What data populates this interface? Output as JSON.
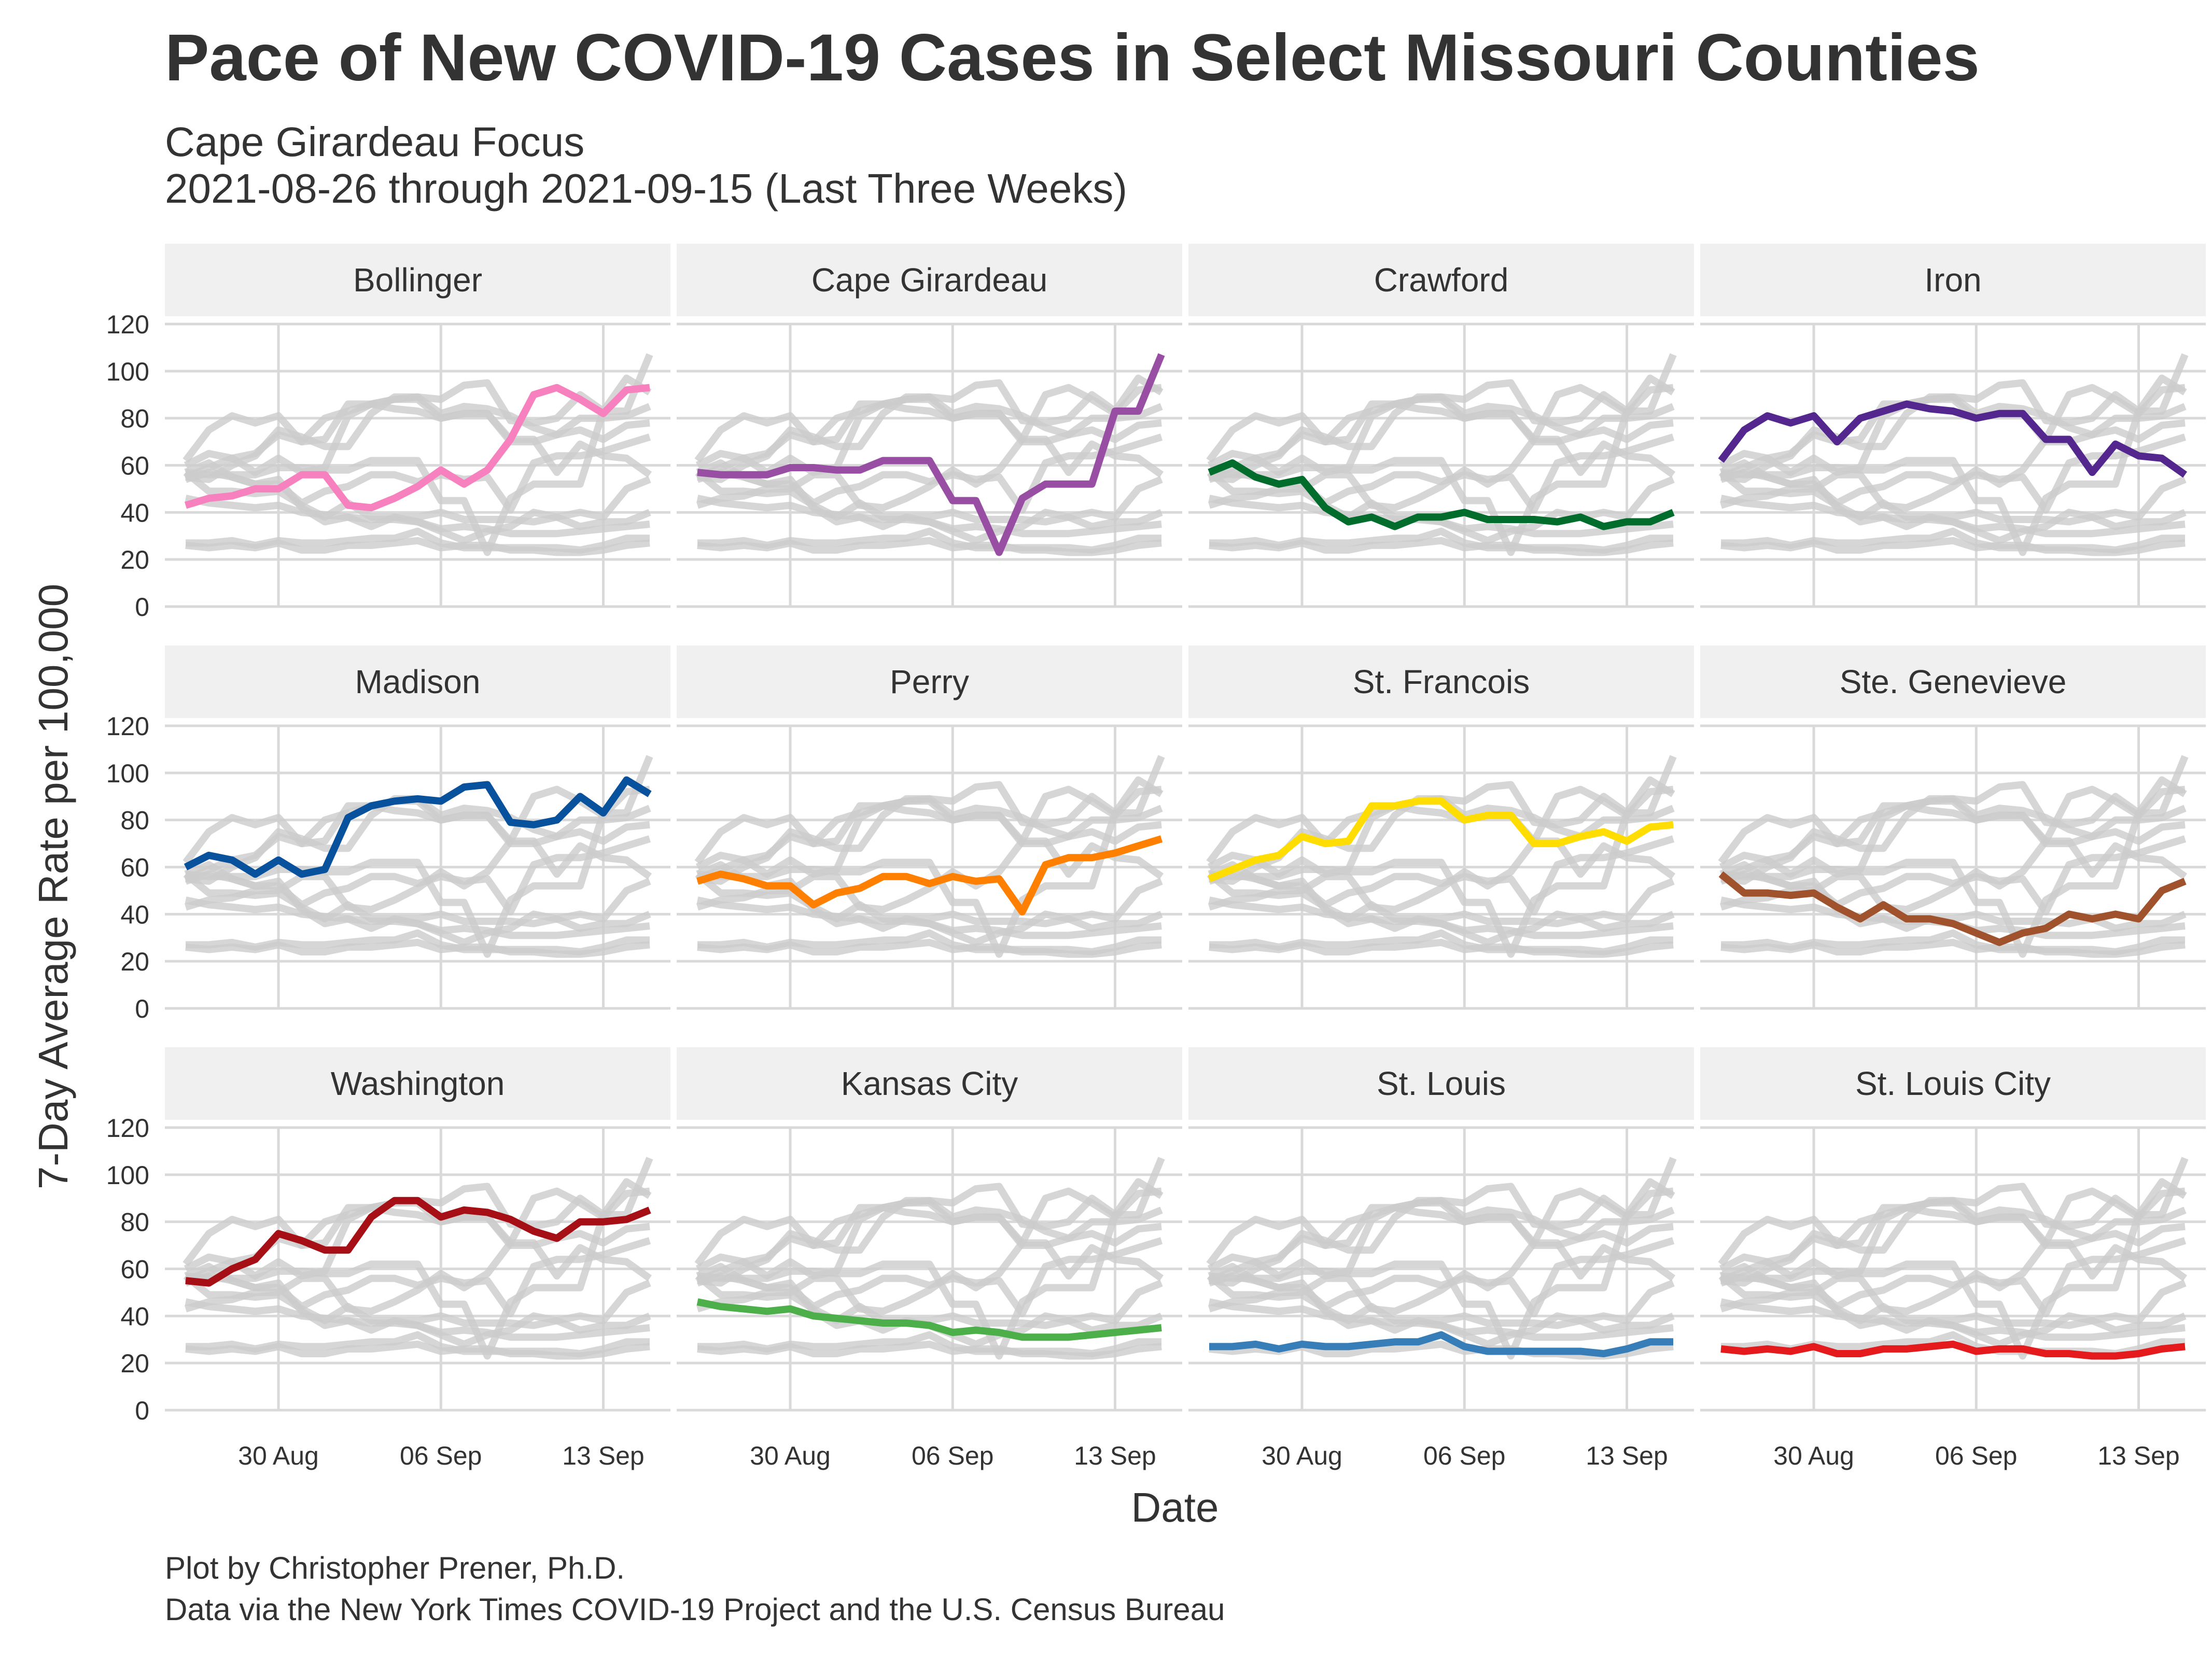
{
  "title": "Pace of New COVID-19 Cases in Select Missouri Counties",
  "subtitle_line1": "Cape Girardeau Focus",
  "subtitle_line2": "2021-08-26 through 2021-09-15 (Last Three Weeks)",
  "caption_line1": "Plot by Christopher Prener, Ph.D.",
  "caption_line2": "Data via the New York Times COVID-19 Project and the U.S. Census Bureau",
  "chart_data": {
    "type": "line",
    "layout": "small-multiples",
    "xlabel": "Date",
    "ylabel": "7-Day Average Rate per 100,000",
    "ylim": [
      0,
      120
    ],
    "yticks": [
      0,
      20,
      40,
      60,
      80,
      100,
      120
    ],
    "xticks": [
      {
        "label": "30 Aug",
        "index": 4
      },
      {
        "label": "06 Sep",
        "index": 11
      },
      {
        "label": "13 Sep",
        "index": 18
      }
    ],
    "x": [
      "2021-08-26",
      "2021-08-27",
      "2021-08-28",
      "2021-08-29",
      "2021-08-30",
      "2021-08-31",
      "2021-09-01",
      "2021-09-02",
      "2021-09-03",
      "2021-09-04",
      "2021-09-05",
      "2021-09-06",
      "2021-09-07",
      "2021-09-08",
      "2021-09-09",
      "2021-09-10",
      "2021-09-11",
      "2021-09-12",
      "2021-09-13",
      "2021-09-14",
      "2021-09-15"
    ],
    "grid": true,
    "background_series_color": "#cccccc",
    "series": [
      {
        "name": "Bollinger",
        "color": "#f781bf",
        "values": [
          43,
          46,
          47,
          50,
          50,
          56,
          56,
          43,
          42,
          46,
          51,
          58,
          52,
          58,
          71,
          90,
          93,
          88,
          82,
          92,
          93
        ]
      },
      {
        "name": "Cape Girardeau",
        "color": "#984ea3",
        "values": [
          57,
          56,
          56,
          56,
          59,
          59,
          58,
          58,
          62,
          62,
          62,
          45,
          45,
          23,
          46,
          52,
          52,
          52,
          83,
          83,
          107
        ]
      },
      {
        "name": "Crawford",
        "color": "#006d2c",
        "values": [
          57,
          61,
          55,
          52,
          54,
          42,
          36,
          38,
          34,
          38,
          38,
          40,
          37,
          37,
          37,
          36,
          38,
          34,
          36,
          36,
          40
        ]
      },
      {
        "name": "Iron",
        "color": "#54278f",
        "values": [
          62,
          75,
          81,
          78,
          81,
          70,
          80,
          83,
          86,
          84,
          83,
          80,
          82,
          82,
          71,
          71,
          57,
          69,
          64,
          63,
          56
        ]
      },
      {
        "name": "Madison",
        "color": "#08519c",
        "values": [
          60,
          65,
          63,
          57,
          63,
          57,
          59,
          81,
          86,
          88,
          89,
          88,
          94,
          95,
          79,
          78,
          80,
          90,
          83,
          97,
          91
        ]
      },
      {
        "name": "Perry",
        "color": "#ff7f00",
        "values": [
          54,
          57,
          55,
          52,
          52,
          44,
          49,
          51,
          56,
          56,
          53,
          56,
          54,
          55,
          41,
          61,
          64,
          64,
          66,
          69,
          72
        ]
      },
      {
        "name": "St. Francois",
        "color": "#ffdd00",
        "values": [
          55,
          59,
          63,
          65,
          73,
          70,
          71,
          86,
          86,
          88,
          88,
          80,
          82,
          82,
          70,
          70,
          73,
          75,
          71,
          77,
          78
        ]
      },
      {
        "name": "Ste. Genevieve",
        "color": "#a0522d",
        "values": [
          57,
          49,
          49,
          48,
          49,
          43,
          38,
          44,
          38,
          38,
          36,
          32,
          28,
          32,
          34,
          40,
          38,
          40,
          38,
          50,
          54
        ]
      },
      {
        "name": "Washington",
        "color": "#a50f15",
        "values": [
          55,
          54,
          60,
          64,
          75,
          72,
          68,
          68,
          82,
          89,
          89,
          82,
          85,
          84,
          81,
          76,
          73,
          80,
          80,
          81,
          85
        ]
      },
      {
        "name": "Kansas City",
        "color": "#4daf4a",
        "values": [
          46,
          44,
          43,
          42,
          43,
          40,
          39,
          38,
          37,
          37,
          36,
          33,
          34,
          33,
          31,
          31,
          31,
          32,
          33,
          34,
          35
        ]
      },
      {
        "name": "St. Louis",
        "color": "#377eb8",
        "values": [
          27,
          27,
          28,
          26,
          28,
          27,
          27,
          28,
          29,
          29,
          32,
          27,
          25,
          25,
          25,
          25,
          25,
          24,
          26,
          29,
          29
        ]
      },
      {
        "name": "St. Louis City",
        "color": "#e41a1c",
        "values": [
          26,
          25,
          26,
          25,
          27,
          24,
          24,
          26,
          26,
          27,
          28,
          25,
          26,
          26,
          24,
          24,
          23,
          23,
          24,
          26,
          27
        ]
      }
    ]
  }
}
